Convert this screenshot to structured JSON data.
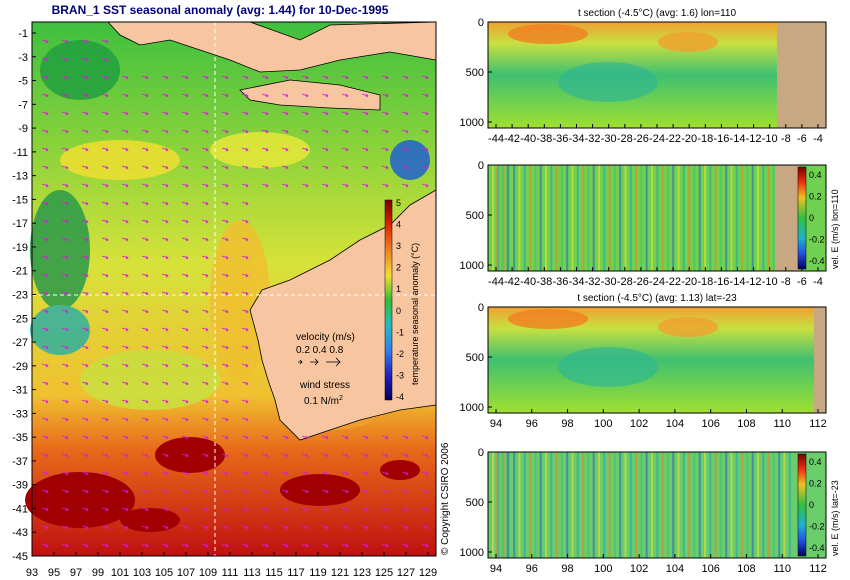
{
  "title": "BRAN_1  SST seasonal anomaly (avg: 1.44) for 10-Dec-1995",
  "map": {
    "lat_labels": [
      "-1",
      "-3",
      "-5",
      "-7",
      "-9",
      "-11",
      "-13",
      "-15",
      "-17",
      "-19",
      "-21",
      "-23",
      "-25",
      "-27",
      "-29",
      "-31",
      "-33",
      "-35",
      "-37",
      "-39",
      "-41",
      "-43",
      "-45"
    ],
    "lon_labels": [
      "93",
      "95",
      "97",
      "99",
      "101",
      "103",
      "105",
      "107",
      "109",
      "111",
      "113",
      "115",
      "117",
      "119",
      "121",
      "123",
      "125",
      "127",
      "129"
    ],
    "colorbar_ticks": [
      "5",
      "4",
      "3",
      "2",
      "1",
      "0",
      "-1",
      "-2",
      "-3",
      "-4"
    ],
    "colorbar_label": "temperature seasonal anomaly (°C)",
    "velocity_label": "velocity (m/s)",
    "velocity_values": "0.2 0.4 0.8",
    "wind_label": "wind stress",
    "wind_value": "0.1 N/m",
    "wind_exp": "2",
    "copyright": "© Copyright CSIRO 2006",
    "land_color": "#f7c59f",
    "ocean_hot_color": "#a00000"
  },
  "panels": [
    {
      "title": "t section (-4.5°C) (avg: 1.6) lon=110",
      "x_ticks": [
        "-44",
        "-42",
        "-40",
        "-38",
        "-36",
        "-34",
        "-32",
        "-30",
        "-28",
        "-26",
        "-24",
        "-22",
        "-20",
        "-18",
        "-16",
        "-14",
        "-12",
        "-10",
        "-8",
        "-6",
        "-4"
      ],
      "y_ticks": [
        "0",
        "500",
        "1000"
      ]
    },
    {
      "title": "",
      "x_ticks": [
        "-44",
        "-42",
        "-40",
        "-38",
        "-36",
        "-34",
        "-32",
        "-30",
        "-28",
        "-26",
        "-24",
        "-22",
        "-20",
        "-18",
        "-16",
        "-14",
        "-12",
        "-10",
        "-8",
        "-6",
        "-4"
      ],
      "y_ticks": [
        "0",
        "500",
        "1000"
      ],
      "cb_ticks": [
        "0.4",
        "0.2",
        "0",
        "-0.2",
        "-0.4"
      ],
      "cb_label": "vel. E (m/s) lon=110"
    },
    {
      "title": "t section (-4.5°C) (avg: 1.13) lat=-23",
      "x_ticks": [
        "94",
        "96",
        "98",
        "100",
        "102",
        "104",
        "106",
        "108",
        "110",
        "112"
      ],
      "y_ticks": [
        "0",
        "500",
        "1000"
      ]
    },
    {
      "title": "",
      "x_ticks": [
        "94",
        "96",
        "98",
        "100",
        "102",
        "104",
        "106",
        "108",
        "110",
        "112"
      ],
      "y_ticks": [
        "0",
        "500",
        "1000"
      ],
      "cb_ticks": [
        "0.4",
        "0.2",
        "0",
        "-0.2",
        "-0.4"
      ],
      "cb_label": "vel. E (m/s) lat=-23"
    }
  ]
}
